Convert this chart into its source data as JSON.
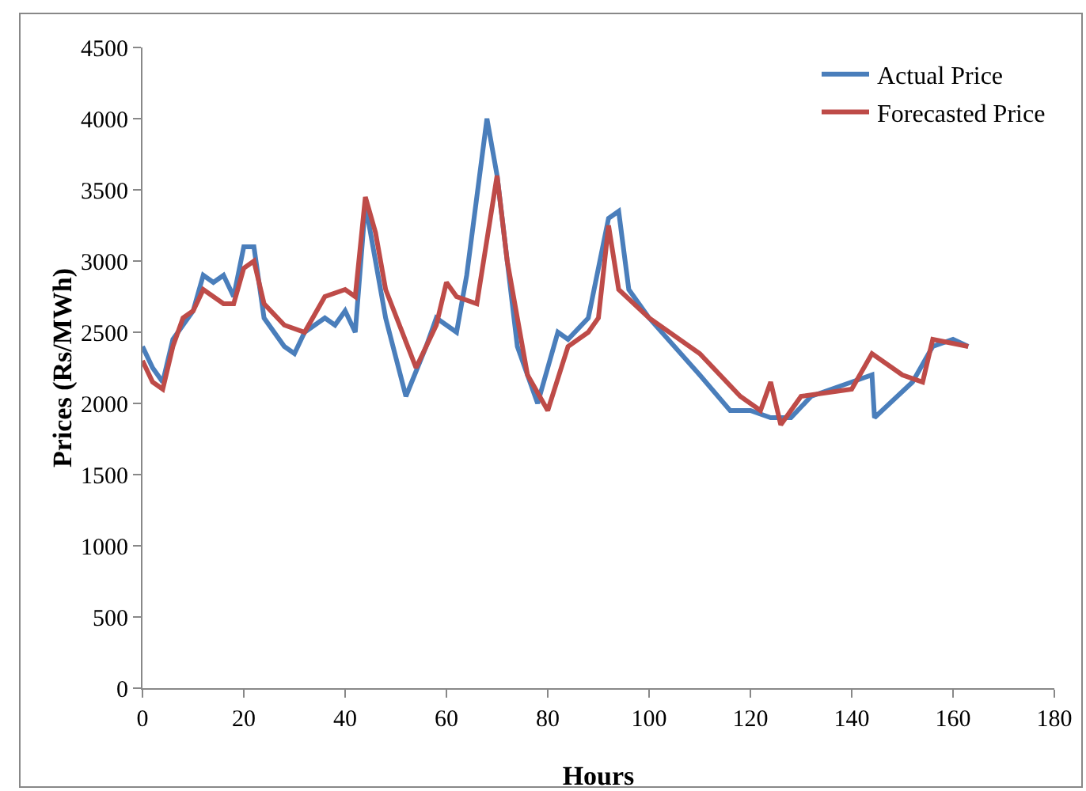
{
  "chart_data": {
    "type": "line",
    "xlabel": "Hours",
    "ylabel": "Prices (Rs/MWh)",
    "xlim": [
      0,
      180
    ],
    "xticks": [
      0,
      20,
      40,
      60,
      80,
      100,
      120,
      140,
      160,
      180
    ],
    "ylim": [
      0,
      4500
    ],
    "yticks": [
      0,
      500,
      1000,
      1500,
      2000,
      2500,
      3000,
      3500,
      4000,
      4500
    ],
    "grid": false,
    "legend": "top right",
    "marker": "none",
    "line_style": "solid",
    "series": [
      {
        "name": "Actual Price",
        "color": "#4a7ebb",
        "x": [
          0,
          2,
          4,
          6,
          8,
          10,
          12,
          14,
          16,
          18,
          20,
          22,
          24,
          28,
          30,
          32,
          36,
          38,
          40,
          42,
          44,
          46,
          48,
          52,
          56,
          58,
          62,
          64,
          68,
          70,
          74,
          78,
          82,
          84,
          88,
          92,
          94,
          96,
          100,
          110,
          116,
          120,
          124,
          128,
          132,
          140,
          144,
          144.5,
          152,
          156,
          160,
          163
        ],
        "values": [
          2400,
          2250,
          2150,
          2450,
          2550,
          2650,
          2900,
          2850,
          2900,
          2750,
          3100,
          3100,
          2600,
          2400,
          2350,
          2500,
          2600,
          2550,
          2650,
          2500,
          3400,
          3000,
          2600,
          2050,
          2400,
          2600,
          2500,
          2900,
          4000,
          3600,
          2400,
          2000,
          2500,
          2450,
          2600,
          3300,
          3350,
          2800,
          2600,
          2200,
          1950,
          1950,
          1900,
          1900,
          2050,
          2150,
          2200,
          1900,
          2150,
          2400,
          2450,
          2400
        ]
      },
      {
        "name": "Forecasted Price",
        "color": "#be4b48",
        "x": [
          0,
          2,
          4,
          6,
          8,
          10,
          12,
          16,
          18,
          20,
          22,
          24,
          28,
          32,
          36,
          40,
          42,
          44,
          46,
          48,
          54,
          58,
          60,
          62,
          66,
          70,
          72,
          76,
          80,
          84,
          88,
          90,
          92,
          94,
          100,
          110,
          118,
          122,
          124,
          126,
          130,
          140,
          144,
          150,
          154,
          156,
          163
        ],
        "values": [
          2300,
          2150,
          2100,
          2400,
          2600,
          2650,
          2800,
          2700,
          2700,
          2950,
          3000,
          2700,
          2550,
          2500,
          2750,
          2800,
          2750,
          3450,
          3200,
          2800,
          2250,
          2550,
          2850,
          2750,
          2700,
          3600,
          3000,
          2200,
          1950,
          2400,
          2500,
          2600,
          3250,
          2800,
          2600,
          2350,
          2050,
          1950,
          2150,
          1850,
          2050,
          2100,
          2350,
          2200,
          2150,
          2450,
          2400
        ]
      }
    ]
  }
}
